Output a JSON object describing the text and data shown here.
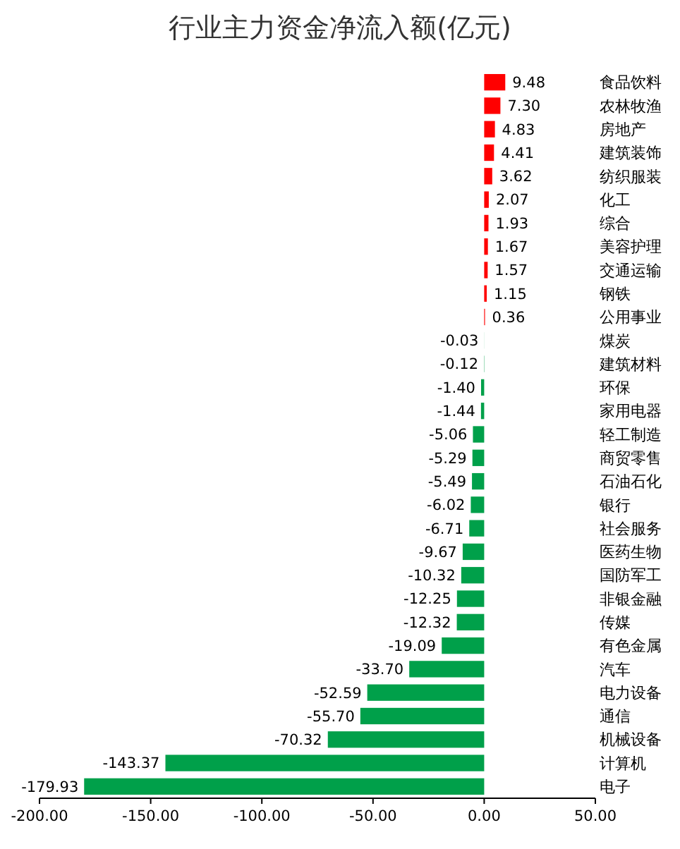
{
  "chart_data": {
    "type": "bar",
    "orientation": "horizontal",
    "title": "行业主力资金净流入额(亿元)",
    "categories": [
      "食品饮料",
      "农林牧渔",
      "房地产",
      "建筑装饰",
      "纺织服装",
      "化工",
      "综合",
      "美容护理",
      "交通运输",
      "钢铁",
      "公用事业",
      "煤炭",
      "建筑材料",
      "环保",
      "家用电器",
      "轻工制造",
      "商贸零售",
      "石油石化",
      "银行",
      "社会服务",
      "医药生物",
      "国防军工",
      "非银金融",
      "传媒",
      "有色金属",
      "汽车",
      "电力设备",
      "通信",
      "机械设备",
      "计算机",
      "电子"
    ],
    "values": [
      9.48,
      7.3,
      4.83,
      4.41,
      3.62,
      2.07,
      1.93,
      1.67,
      1.57,
      1.15,
      0.36,
      -0.03,
      -0.12,
      -1.4,
      -1.44,
      -5.06,
      -5.29,
      -5.49,
      -6.02,
      -6.71,
      -9.67,
      -10.32,
      -12.25,
      -12.32,
      -19.09,
      -33.7,
      -52.59,
      -55.7,
      -70.32,
      -143.37,
      -179.93
    ],
    "value_labels": [
      "9.48",
      "7.30",
      "4.83",
      "4.41",
      "3.62",
      "2.07",
      "1.93",
      "1.67",
      "1.57",
      "1.15",
      "0.36",
      "-0.03",
      "-0.12",
      "-1.40",
      "-1.44",
      "-5.06",
      "-5.29",
      "-5.49",
      "-6.02",
      "-6.71",
      "-9.67",
      "-10.32",
      "-12.25",
      "-12.32",
      "-19.09",
      "-33.70",
      "-52.59",
      "-55.70",
      "-70.32",
      "-143.37",
      "-179.93"
    ],
    "colors": [
      "#ff0000",
      "#ff0000",
      "#ff0000",
      "#ff0000",
      "#ff0000",
      "#ff0000",
      "#ff0000",
      "#ff0000",
      "#ff0000",
      "#ff0000",
      "#ff0000",
      "#00a04a",
      "#00a04a",
      "#00a04a",
      "#00a04a",
      "#00a04a",
      "#00a04a",
      "#00a04a",
      "#00a04a",
      "#00a04a",
      "#00a04a",
      "#00a04a",
      "#00a04a",
      "#00a04a",
      "#00a04a",
      "#00a04a",
      "#00a04a",
      "#00a04a",
      "#00a04a",
      "#00a04a",
      "#00a04a"
    ],
    "xlim": [
      -200,
      50
    ],
    "xticks": [
      {
        "value": -200,
        "label": "-200.00"
      },
      {
        "value": -150,
        "label": "-150.00"
      },
      {
        "value": -100,
        "label": "-100.00"
      },
      {
        "value": -50,
        "label": "-50.00"
      },
      {
        "value": 0,
        "label": "0.00"
      },
      {
        "value": 50,
        "label": "50.00"
      }
    ]
  }
}
